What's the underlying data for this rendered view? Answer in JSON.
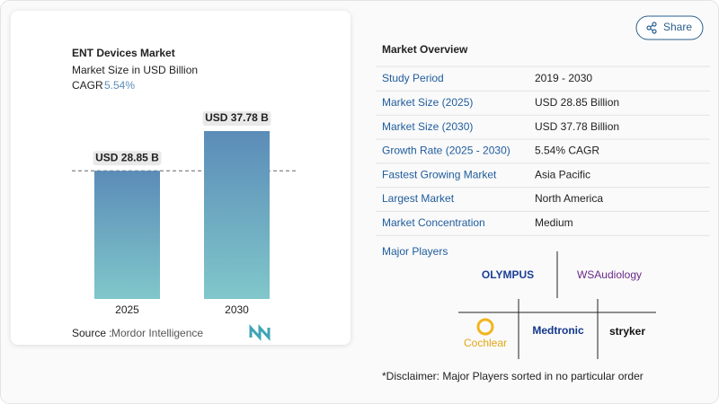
{
  "chart_data": {
    "type": "bar",
    "title": "ENT Devices Market",
    "subtitle": "Market Size in USD Billion",
    "cagr_label": "CAGR",
    "cagr": "5.54%",
    "categories": [
      "2025",
      "2030"
    ],
    "values": [
      28.85,
      37.78
    ],
    "value_labels": [
      "USD 28.85 B",
      "USD 37.78 B"
    ],
    "colors": [
      "#5b8cb8",
      "#80c7ca"
    ],
    "source_label": "Source :",
    "source": "Mordor Intelligence"
  },
  "share": "Share",
  "overview": {
    "title": "Market Overview",
    "rows": [
      [
        "Study Period",
        "2019 - 2030"
      ],
      [
        "Market Size (2025)",
        "USD 28.85 Billion"
      ],
      [
        "Market Size (2030)",
        "USD 37.78 Billion"
      ],
      [
        "Growth Rate (2025 - 2030)",
        "5.54% CAGR"
      ],
      [
        "Fastest Growing Market",
        "Asia Pacific"
      ],
      [
        "Largest Market",
        "North America"
      ],
      [
        "Market Concentration",
        "Medium"
      ]
    ],
    "players_title": "Major Players",
    "players": [
      "OLYMPUS",
      "WSAudiology",
      "Cochlear",
      "Medtronic",
      "stryker"
    ],
    "disclaimer": "*Disclaimer: Major Players sorted in no particular order"
  }
}
